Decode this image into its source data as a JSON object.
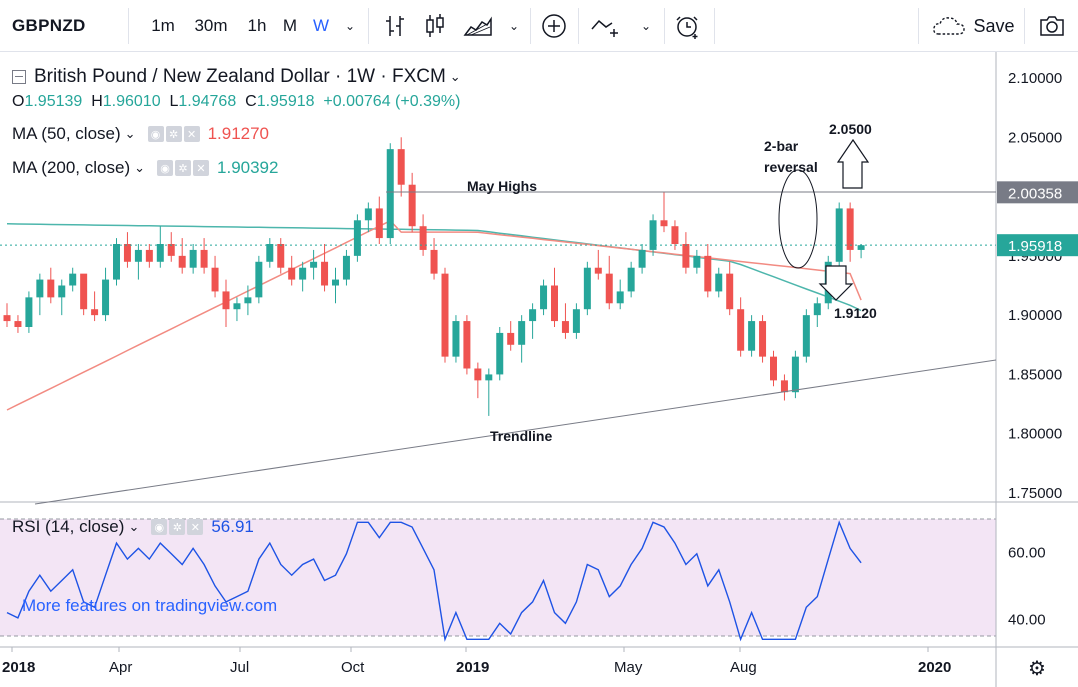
{
  "toolbar": {
    "symbol": "GBPNZD",
    "intervals": [
      "1m",
      "30m",
      "1h",
      "M",
      "W"
    ],
    "active_interval": "W",
    "save_label": "Save"
  },
  "legend": {
    "title": "British Pound / New Zealand Dollar · 1W · FXCM",
    "ohlc": {
      "o": "1.95139",
      "h": "1.96010",
      "l": "1.94768",
      "c": "1.95918",
      "chg": "+0.00764 (+0.39%)"
    },
    "ma50": {
      "label": "MA (50, close)",
      "value": "1.91270",
      "color": "#ef5350"
    },
    "ma200": {
      "label": "MA (200, close)",
      "value": "1.90392",
      "color": "#26a69a"
    },
    "rsi": {
      "label": "RSI (14, close)",
      "value": "56.91",
      "color": "#1e53e5"
    }
  },
  "price_axis": {
    "ticks": [
      "2.10000",
      "2.05000",
      "2.00000",
      "1.95000",
      "1.90000",
      "1.85000",
      "1.80000",
      "1.75000"
    ],
    "may_highs_label": "2.00358",
    "last_price_label": "1.95918"
  },
  "rsi_axis": {
    "ticks": [
      "60.00",
      "40.00"
    ]
  },
  "time_axis": {
    "ticks": [
      "2018",
      "Apr",
      "Jul",
      "Oct",
      "2019",
      "May",
      "Aug",
      "2020"
    ]
  },
  "annotations": {
    "may_highs": "May Highs",
    "two_bar_1": "2-bar",
    "two_bar_2": "reversal",
    "target_up": "2.0500",
    "target_down": "1.9120",
    "trendline": "Trendline",
    "promo": "More features on tradingview.com"
  },
  "colors": {
    "up": "#26a69a",
    "down": "#ef5350",
    "accent": "#2962ff",
    "rsi_bg": "#f3e5f5"
  },
  "chart_data": {
    "type": "candlestick",
    "title": "British Pound / New Zealand Dollar · 1W · FXCM",
    "candles_ohlc_approx": [
      [
        1.9,
        1.91,
        1.89,
        1.895
      ],
      [
        1.895,
        1.9,
        1.885,
        1.89
      ],
      [
        1.89,
        1.92,
        1.885,
        1.915
      ],
      [
        1.915,
        1.935,
        1.9,
        1.93
      ],
      [
        1.93,
        1.94,
        1.91,
        1.915
      ],
      [
        1.915,
        1.93,
        1.9,
        1.925
      ],
      [
        1.925,
        1.94,
        1.92,
        1.935
      ],
      [
        1.935,
        1.93,
        1.9,
        1.905
      ],
      [
        1.905,
        1.92,
        1.895,
        1.9
      ],
      [
        1.9,
        1.94,
        1.895,
        1.93
      ],
      [
        1.93,
        1.965,
        1.925,
        1.96
      ],
      [
        1.96,
        1.97,
        1.94,
        1.945
      ],
      [
        1.945,
        1.96,
        1.93,
        1.955
      ],
      [
        1.955,
        1.96,
        1.94,
        1.945
      ],
      [
        1.945,
        1.975,
        1.94,
        1.96
      ],
      [
        1.96,
        1.97,
        1.945,
        1.95
      ],
      [
        1.95,
        1.965,
        1.935,
        1.94
      ],
      [
        1.94,
        1.96,
        1.935,
        1.955
      ],
      [
        1.955,
        1.965,
        1.935,
        1.94
      ],
      [
        1.94,
        1.95,
        1.915,
        1.92
      ],
      [
        1.92,
        1.93,
        1.89,
        1.905
      ],
      [
        1.905,
        1.915,
        1.895,
        1.91
      ],
      [
        1.91,
        1.925,
        1.9,
        1.915
      ],
      [
        1.915,
        1.95,
        1.91,
        1.945
      ],
      [
        1.945,
        1.965,
        1.94,
        1.96
      ],
      [
        1.96,
        1.965,
        1.935,
        1.94
      ],
      [
        1.94,
        1.95,
        1.925,
        1.93
      ],
      [
        1.93,
        1.945,
        1.92,
        1.94
      ],
      [
        1.94,
        1.955,
        1.93,
        1.945
      ],
      [
        1.945,
        1.96,
        1.92,
        1.925
      ],
      [
        1.925,
        1.94,
        1.91,
        1.93
      ],
      [
        1.93,
        1.955,
        1.925,
        1.95
      ],
      [
        1.95,
        1.985,
        1.945,
        1.98
      ],
      [
        1.98,
        1.995,
        1.97,
        1.99
      ],
      [
        1.99,
        2.0,
        1.96,
        1.965
      ],
      [
        1.965,
        2.045,
        1.96,
        2.04
      ],
      [
        2.04,
        2.05,
        2.0,
        2.01
      ],
      [
        2.01,
        2.02,
        1.97,
        1.975
      ],
      [
        1.975,
        1.985,
        1.95,
        1.955
      ],
      [
        1.955,
        1.965,
        1.93,
        1.935
      ],
      [
        1.935,
        1.94,
        1.86,
        1.865
      ],
      [
        1.865,
        1.9,
        1.86,
        1.895
      ],
      [
        1.895,
        1.9,
        1.85,
        1.855
      ],
      [
        1.855,
        1.86,
        1.83,
        1.845
      ],
      [
        1.845,
        1.855,
        1.815,
        1.85
      ],
      [
        1.85,
        1.89,
        1.845,
        1.885
      ],
      [
        1.885,
        1.895,
        1.87,
        1.875
      ],
      [
        1.875,
        1.9,
        1.86,
        1.895
      ],
      [
        1.895,
        1.91,
        1.88,
        1.905
      ],
      [
        1.905,
        1.93,
        1.9,
        1.925
      ],
      [
        1.925,
        1.94,
        1.89,
        1.895
      ],
      [
        1.895,
        1.91,
        1.88,
        1.885
      ],
      [
        1.885,
        1.91,
        1.88,
        1.905
      ],
      [
        1.905,
        1.945,
        1.9,
        1.94
      ],
      [
        1.94,
        1.955,
        1.93,
        1.935
      ],
      [
        1.935,
        1.95,
        1.905,
        1.91
      ],
      [
        1.91,
        1.93,
        1.905,
        1.92
      ],
      [
        1.92,
        1.945,
        1.915,
        1.94
      ],
      [
        1.94,
        1.96,
        1.935,
        1.955
      ],
      [
        1.955,
        1.985,
        1.95,
        1.98
      ],
      [
        1.98,
        2.0036,
        1.97,
        1.975
      ],
      [
        1.975,
        1.98,
        1.955,
        1.96
      ],
      [
        1.96,
        1.97,
        1.935,
        1.94
      ],
      [
        1.94,
        1.955,
        1.935,
        1.95
      ],
      [
        1.95,
        1.96,
        1.915,
        1.92
      ],
      [
        1.92,
        1.94,
        1.915,
        1.935
      ],
      [
        1.935,
        1.945,
        1.9,
        1.905
      ],
      [
        1.905,
        1.915,
        1.865,
        1.87
      ],
      [
        1.87,
        1.9,
        1.865,
        1.895
      ],
      [
        1.895,
        1.9,
        1.86,
        1.865
      ],
      [
        1.865,
        1.87,
        1.84,
        1.845
      ],
      [
        1.845,
        1.85,
        1.828,
        1.835
      ],
      [
        1.835,
        1.87,
        1.83,
        1.865
      ],
      [
        1.865,
        1.905,
        1.86,
        1.9
      ],
      [
        1.9,
        1.915,
        1.89,
        1.91
      ],
      [
        1.91,
        1.95,
        1.905,
        1.945
      ],
      [
        1.945,
        1.995,
        1.94,
        1.99
      ],
      [
        1.99,
        1.995,
        1.945,
        1.955
      ],
      [
        1.955,
        1.96,
        1.948,
        1.959
      ]
    ],
    "ma50_end": 1.9127,
    "ma200_end": 1.90392,
    "rsi_last": 56.91,
    "ylim": [
      1.74,
      2.115
    ],
    "rsi_ylim": [
      25,
      70
    ]
  }
}
